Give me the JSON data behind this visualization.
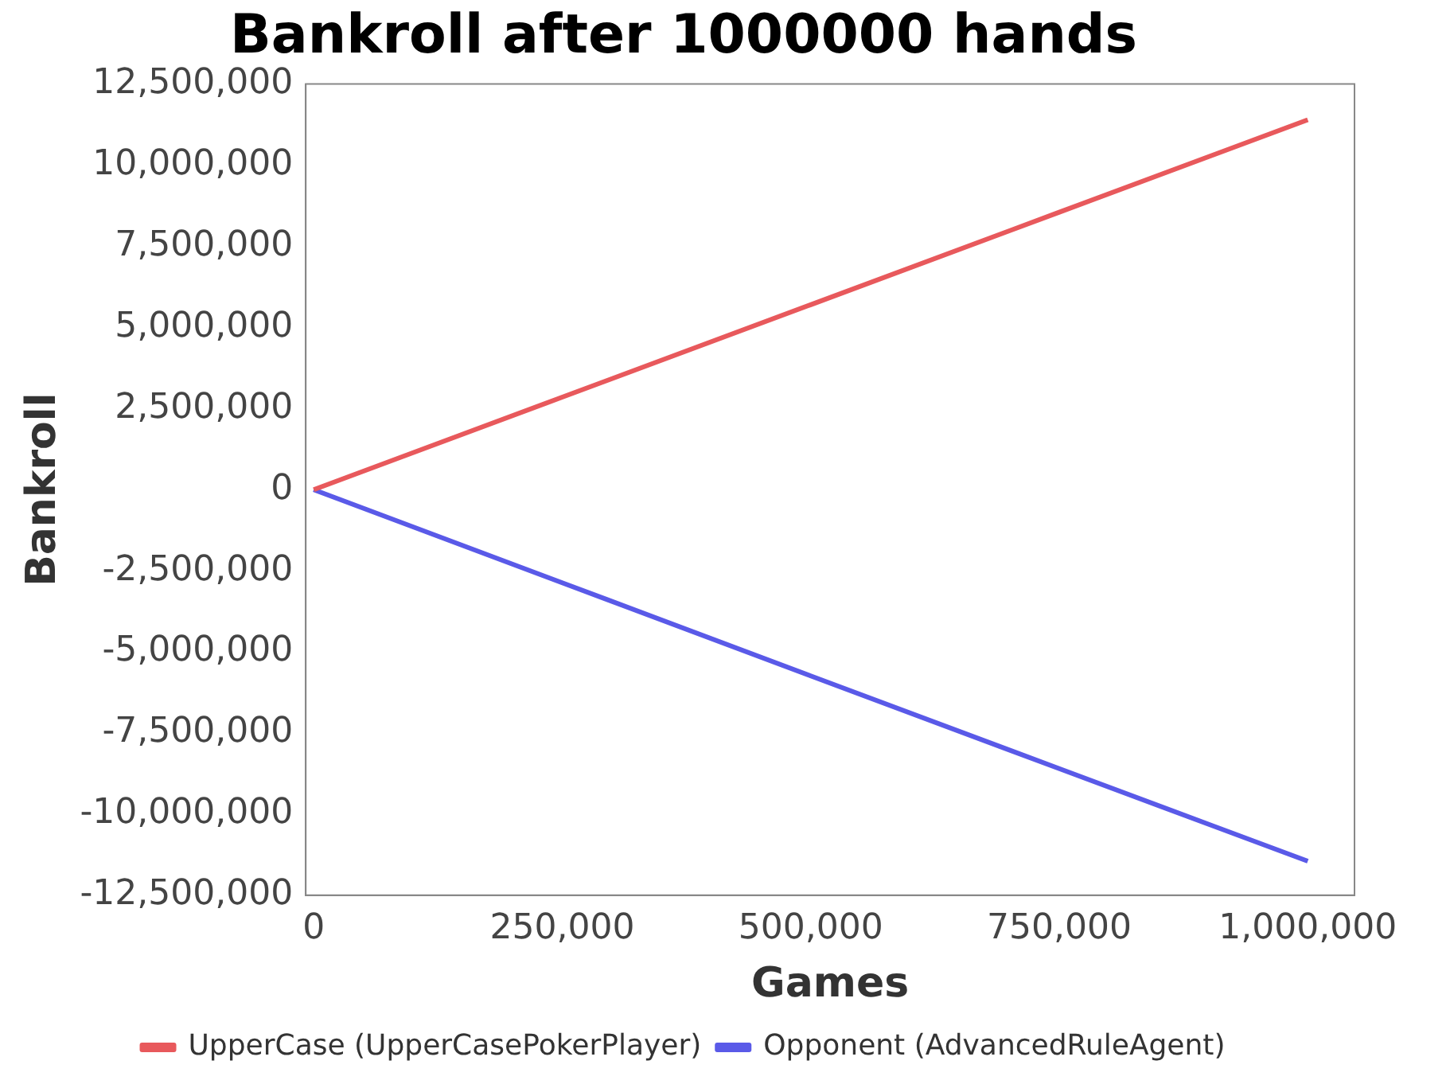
{
  "chart_data": {
    "type": "line",
    "title": "Bankroll after 1000000 hands",
    "xlabel": "Games",
    "ylabel": "Bankroll",
    "x": [
      0,
      250000,
      500000,
      750000,
      1000000
    ],
    "series": [
      {
        "name": "UpperCase (UpperCasePokerPlayer)",
        "color": "#e8595c",
        "values": [
          0,
          2850000,
          5700000,
          8550000,
          11400000
        ]
      },
      {
        "name": "Opponent (AdvancedRuleAgent)",
        "color": "#5a5ae8",
        "values": [
          0,
          -2870000,
          -5740000,
          -8600000,
          -11450000
        ]
      }
    ],
    "xlim": [
      -8000,
      1047000
    ],
    "xticks": [
      {
        "value": 0,
        "label": "0"
      },
      {
        "value": 250000,
        "label": "250,000"
      },
      {
        "value": 500000,
        "label": "500,000"
      },
      {
        "value": 750000,
        "label": "750,000"
      },
      {
        "value": 1000000,
        "label": "1,000,000"
      }
    ],
    "ylim": [
      -12500000,
      12500000
    ],
    "yticks": [
      {
        "value": -12500000,
        "label": "-12,500,000"
      },
      {
        "value": -10000000,
        "label": "-10,000,000"
      },
      {
        "value": -7500000,
        "label": "-7,500,000"
      },
      {
        "value": -5000000,
        "label": "-5,000,000"
      },
      {
        "value": -2500000,
        "label": "-2,500,000"
      },
      {
        "value": 0,
        "label": "0"
      },
      {
        "value": 2500000,
        "label": "2,500,000"
      },
      {
        "value": 5000000,
        "label": "5,000,000"
      },
      {
        "value": 7500000,
        "label": "7,500,000"
      },
      {
        "value": 10000000,
        "label": "10,000,000"
      },
      {
        "value": 12500000,
        "label": "12,500,000"
      }
    ],
    "grid": false,
    "legend": "bottom",
    "marker": "none",
    "line_style": "solid"
  }
}
